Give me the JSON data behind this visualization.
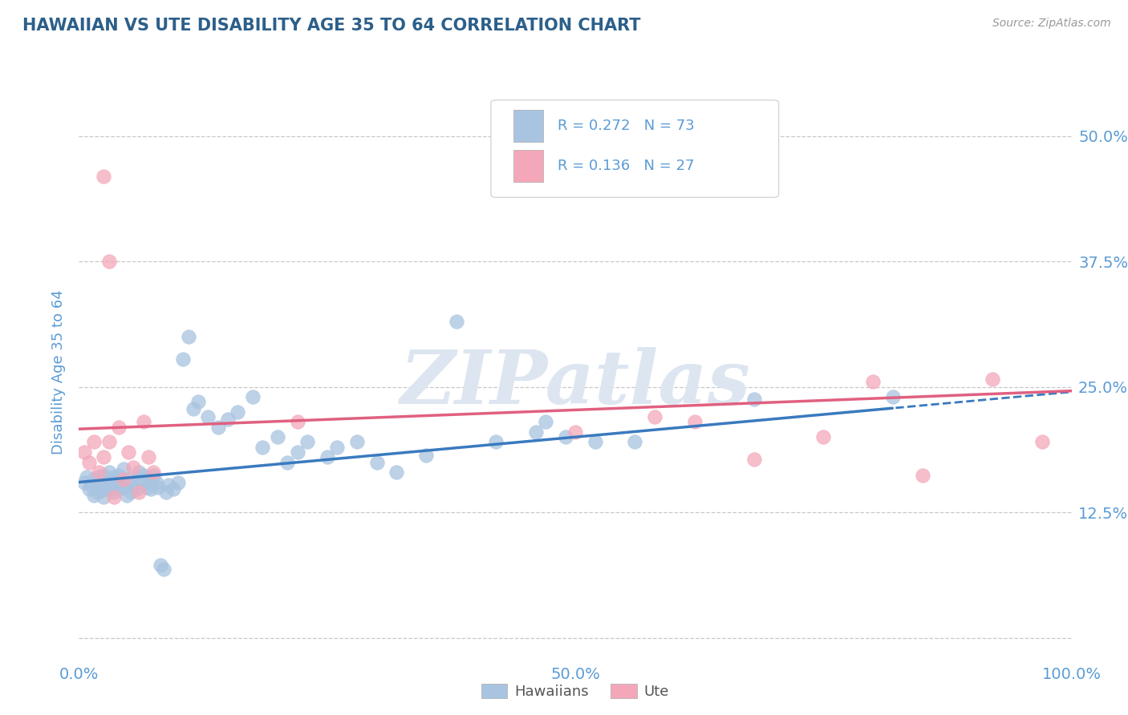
{
  "title": "HAWAIIAN VS UTE DISABILITY AGE 35 TO 64 CORRELATION CHART",
  "source": "Source: ZipAtlas.com",
  "ylabel": "Disability Age 35 to 64",
  "r_hawaiian": 0.272,
  "n_hawaiian": 73,
  "r_ute": 0.136,
  "n_ute": 27,
  "hawaiian_color": "#a8c4e0",
  "ute_color": "#f4a7b9",
  "hawaiian_line_color": "#3a7abf",
  "ute_line_color": "#e06080",
  "background_color": "#ffffff",
  "grid_color": "#c8c8c8",
  "title_color": "#2c5f8a",
  "axis_label_color": "#5b9bd5",
  "text_color": "#333333",
  "watermark": "ZIPatlas",
  "watermark_color": "#dde6f0",
  "xlim": [
    0.0,
    1.0
  ],
  "ylim": [
    -0.02,
    0.55
  ],
  "y_ticks": [
    0.0,
    0.125,
    0.25,
    0.375,
    0.5
  ],
  "y_tick_labels": [
    "",
    "12.5%",
    "25.0%",
    "37.5%",
    "50.0%"
  ],
  "x_tick_labels_left": "0.0%",
  "x_tick_labels_mid": "50.0%",
  "x_tick_labels_right": "100.0%",
  "hawaiian_x": [
    0.005,
    0.008,
    0.01,
    0.012,
    0.015,
    0.015,
    0.018,
    0.02,
    0.02,
    0.022,
    0.025,
    0.025,
    0.028,
    0.03,
    0.03,
    0.032,
    0.035,
    0.035,
    0.038,
    0.04,
    0.04,
    0.042,
    0.045,
    0.045,
    0.048,
    0.05,
    0.052,
    0.055,
    0.058,
    0.06,
    0.062,
    0.065,
    0.068,
    0.07,
    0.072,
    0.075,
    0.078,
    0.08,
    0.082,
    0.085,
    0.088,
    0.09,
    0.095,
    0.1,
    0.105,
    0.11,
    0.115,
    0.12,
    0.13,
    0.14,
    0.15,
    0.16,
    0.175,
    0.185,
    0.2,
    0.21,
    0.22,
    0.23,
    0.25,
    0.26,
    0.28,
    0.3,
    0.32,
    0.35,
    0.38,
    0.42,
    0.46,
    0.47,
    0.49,
    0.52,
    0.56,
    0.68,
    0.82
  ],
  "hawaiian_y": [
    0.155,
    0.16,
    0.148,
    0.152,
    0.142,
    0.158,
    0.145,
    0.16,
    0.153,
    0.147,
    0.162,
    0.14,
    0.155,
    0.148,
    0.165,
    0.152,
    0.145,
    0.16,
    0.155,
    0.148,
    0.162,
    0.155,
    0.15,
    0.168,
    0.142,
    0.158,
    0.145,
    0.152,
    0.148,
    0.165,
    0.158,
    0.162,
    0.15,
    0.155,
    0.148,
    0.162,
    0.155,
    0.15,
    0.072,
    0.068,
    0.145,
    0.152,
    0.148,
    0.155,
    0.278,
    0.3,
    0.228,
    0.235,
    0.22,
    0.21,
    0.218,
    0.225,
    0.24,
    0.19,
    0.2,
    0.175,
    0.185,
    0.195,
    0.18,
    0.19,
    0.195,
    0.175,
    0.165,
    0.182,
    0.315,
    0.195,
    0.205,
    0.215,
    0.2,
    0.195,
    0.195,
    0.238,
    0.24
  ],
  "ute_x": [
    0.005,
    0.01,
    0.015,
    0.02,
    0.025,
    0.03,
    0.035,
    0.04,
    0.045,
    0.05,
    0.055,
    0.06,
    0.065,
    0.07,
    0.075,
    0.025,
    0.03,
    0.22,
    0.5,
    0.58,
    0.62,
    0.68,
    0.75,
    0.8,
    0.85,
    0.92,
    0.97
  ],
  "ute_y": [
    0.185,
    0.175,
    0.195,
    0.165,
    0.18,
    0.195,
    0.14,
    0.21,
    0.158,
    0.185,
    0.17,
    0.145,
    0.215,
    0.18,
    0.165,
    0.46,
    0.375,
    0.215,
    0.205,
    0.22,
    0.215,
    0.178,
    0.2,
    0.255,
    0.162,
    0.258,
    0.195
  ]
}
